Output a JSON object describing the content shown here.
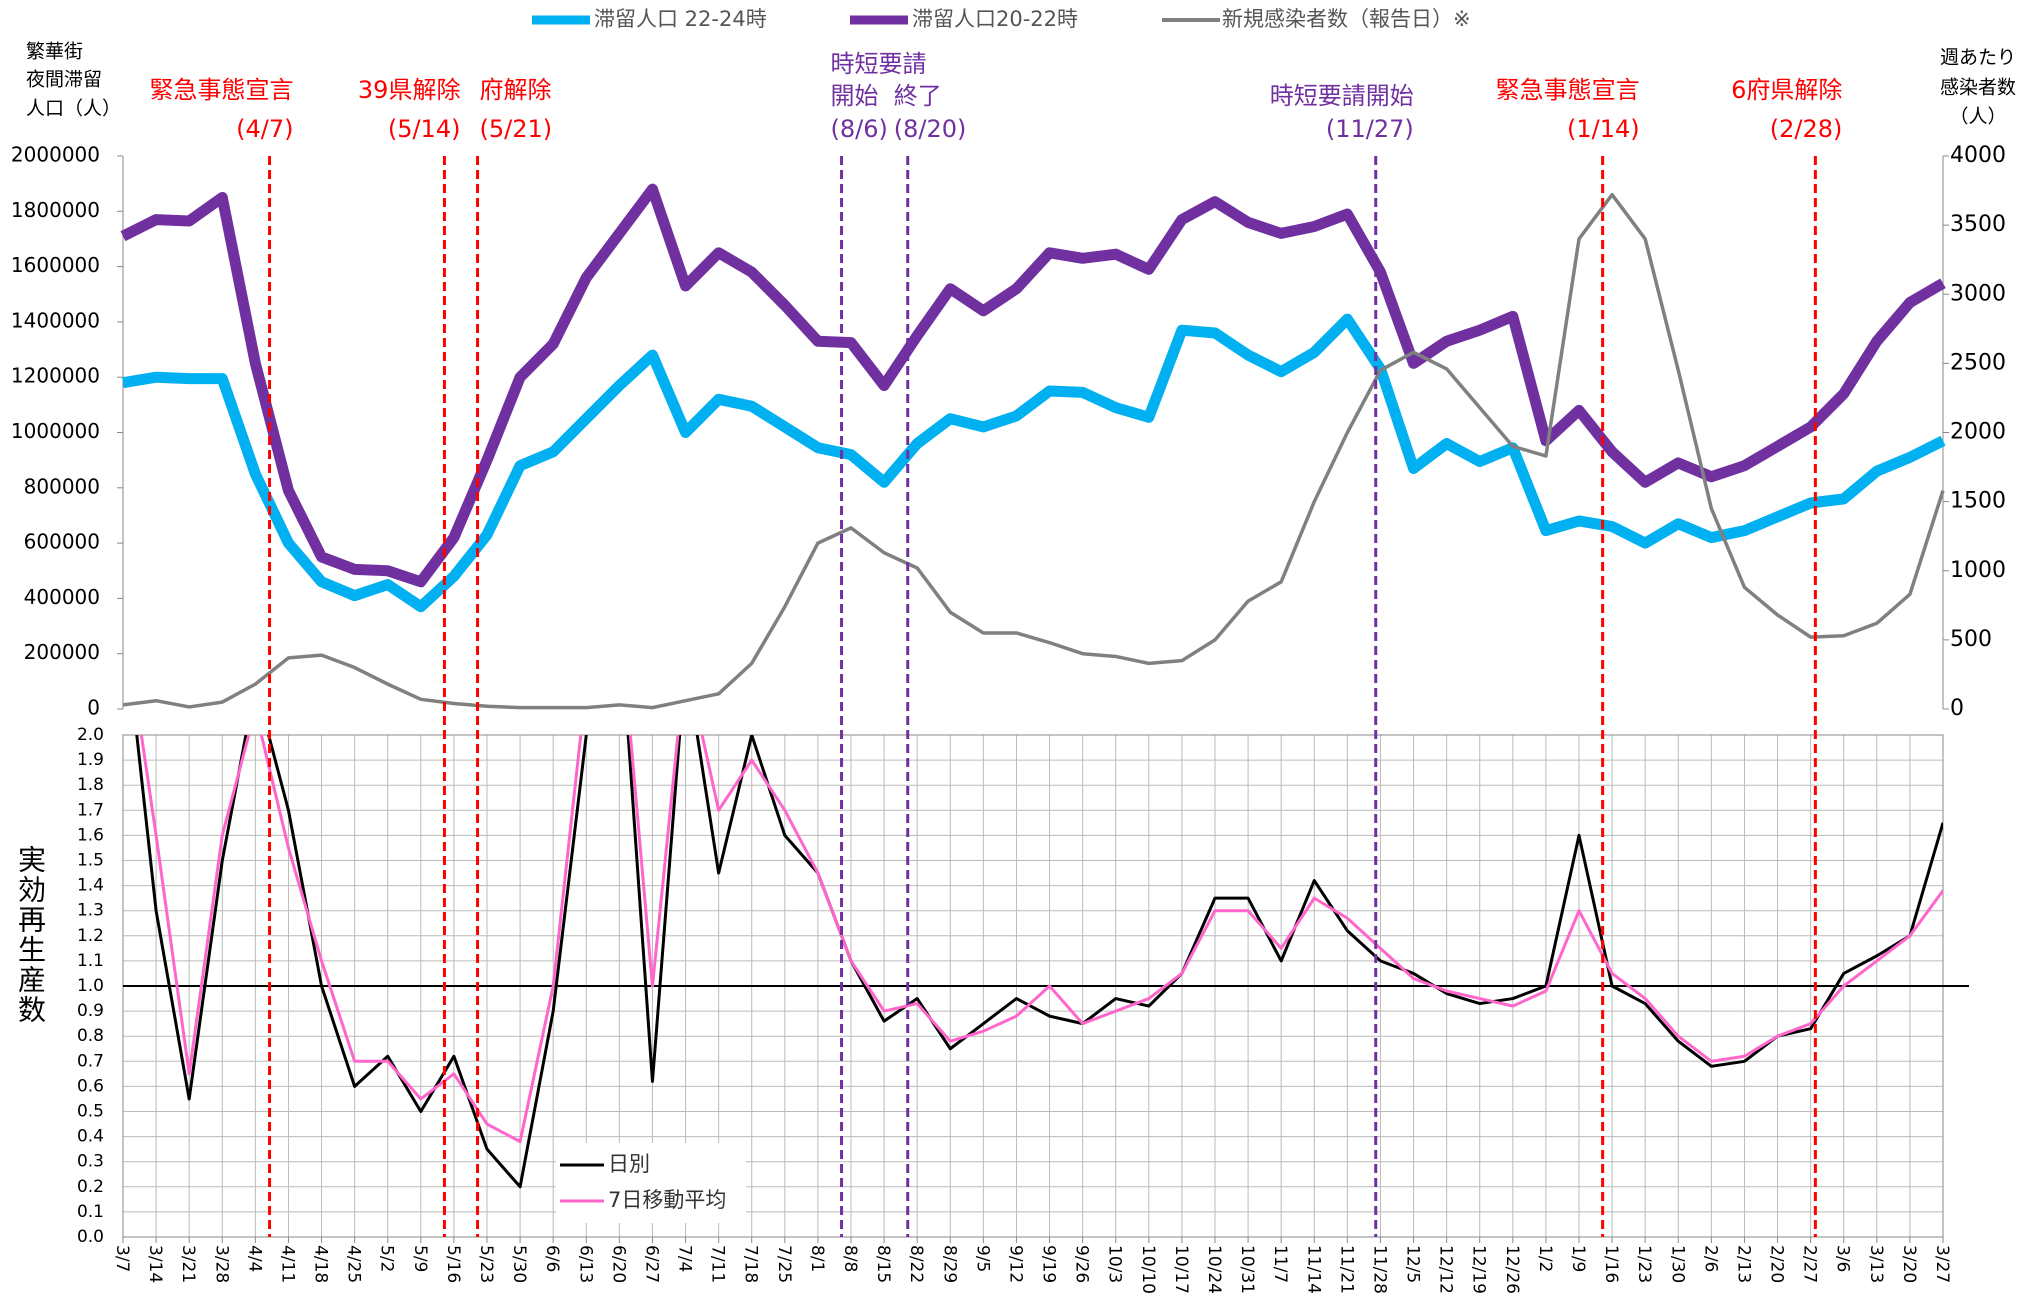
{
  "chart_data": [
    {
      "type": "line",
      "ylabel": [
        "繁華街",
        "夜間滞留",
        "人口（人）"
      ],
      "y2label": [
        "週あたり",
        "感染者数",
        "（人）"
      ],
      "ylim": [
        0,
        2000000
      ],
      "yticks": [
        0,
        200000,
        400000,
        600000,
        800000,
        1000000,
        1200000,
        1400000,
        1600000,
        1800000,
        2000000
      ],
      "y2lim": [
        0,
        4000
      ],
      "y2ticks": [
        0,
        500,
        1000,
        1500,
        2000,
        2500,
        3000,
        3500,
        4000
      ],
      "grid": false,
      "series": [
        {
          "name": "滞留人口 22-24時",
          "color": "#00b0f0",
          "values": [
            1180000,
            1200000,
            1195000,
            1195000,
            850000,
            600000,
            460000,
            410000,
            450000,
            370000,
            480000,
            630000,
            880000,
            930000,
            1050000,
            1170000,
            1280000,
            1000000,
            1120000,
            1095000,
            1020000,
            945000,
            920000,
            820000,
            960000,
            1050000,
            1020000,
            1060000,
            1150000,
            1145000,
            1090000,
            1055000,
            1370000,
            1360000,
            1280000,
            1220000,
            1290000,
            1410000,
            1230000,
            870000,
            960000,
            895000,
            945000,
            645000,
            680000,
            660000,
            600000,
            670000,
            620000,
            645000,
            695000,
            745000,
            760000,
            860000,
            910000,
            970000
          ]
        },
        {
          "name": "滞留人口20-22時",
          "color": "#7030a0",
          "values": [
            1710000,
            1770000,
            1765000,
            1850000,
            1250000,
            790000,
            550000,
            505000,
            500000,
            460000,
            620000,
            900000,
            1200000,
            1320000,
            1560000,
            1720000,
            1880000,
            1530000,
            1650000,
            1580000,
            1460000,
            1330000,
            1325000,
            1170000,
            1350000,
            1520000,
            1440000,
            1520000,
            1650000,
            1630000,
            1645000,
            1590000,
            1770000,
            1835000,
            1760000,
            1720000,
            1745000,
            1790000,
            1580000,
            1250000,
            1330000,
            1370000,
            1420000,
            970000,
            1080000,
            930000,
            820000,
            890000,
            840000,
            880000,
            950000,
            1020000,
            1140000,
            1330000,
            1470000,
            1540000
          ]
        },
        {
          "name": "新規感染者数（報告日）※",
          "color": "#808080",
          "axis": "y2",
          "values": [
            30,
            60,
            15,
            50,
            180,
            370,
            390,
            300,
            180,
            70,
            40,
            20,
            10,
            10,
            10,
            30,
            10,
            60,
            110,
            330,
            740,
            1200,
            1310,
            1130,
            1020,
            700,
            550,
            550,
            480,
            400,
            380,
            330,
            350,
            500,
            780,
            920,
            1500,
            2000,
            2450,
            2580,
            2460,
            2180,
            1900,
            1830,
            3400,
            3720,
            3400,
            2450,
            1450,
            880,
            680,
            520,
            530,
            620,
            830,
            1580
          ]
        }
      ],
      "annotation_heading": "時短要請",
      "annotations": [
        {
          "text": "緊急事態宣言",
          "date": "(4/7)",
          "color": "#ff0000"
        },
        {
          "text": "39県解除",
          "date": "(5/14)",
          "color": "#ff0000"
        },
        {
          "text": "府解除",
          "date": "(5/21)",
          "color": "#ff0000"
        },
        {
          "text": "開始",
          "date": "(8/6)",
          "color": "#7030a0"
        },
        {
          "text": "終了",
          "date": "(8/20)",
          "color": "#7030a0"
        },
        {
          "text": "時短要請開始",
          "date": "(11/27)",
          "color": "#7030a0"
        },
        {
          "text": "緊急事態宣言",
          "date": "(1/14)",
          "color": "#ff0000"
        },
        {
          "text": "6府県解除",
          "date": "(2/28)",
          "color": "#ff0000"
        }
      ]
    },
    {
      "type": "line",
      "ylabel": "実効再生産数",
      "categories": [
        "3/7",
        "3/14",
        "3/21",
        "3/28",
        "4/4",
        "4/11",
        "4/18",
        "4/25",
        "5/2",
        "5/9",
        "5/16",
        "5/23",
        "5/30",
        "6/6",
        "6/13",
        "6/20",
        "6/27",
        "7/4",
        "7/11",
        "7/18",
        "7/25",
        "8/1",
        "8/8",
        "8/15",
        "8/22",
        "8/29",
        "9/5",
        "9/12",
        "9/19",
        "9/26",
        "10/3",
        "10/10",
        "10/17",
        "10/24",
        "10/31",
        "11/7",
        "11/14",
        "11/21",
        "11/28",
        "12/5",
        "12/12",
        "12/19",
        "12/26",
        "1/2",
        "1/9",
        "1/16",
        "1/23",
        "1/30",
        "2/6",
        "2/13",
        "2/20",
        "2/27",
        "3/6",
        "3/13",
        "3/20",
        "3/27"
      ],
      "ylim": [
        0,
        2
      ],
      "yticks": [
        {
          "value": 0,
          "label": "0.0"
        },
        0.1,
        0.2,
        0.3,
        0.4,
        0.5,
        0.6,
        0.7,
        0.8,
        0.9,
        {
          "value": 1,
          "label": "1.0"
        },
        1.1,
        1.2,
        1.3,
        1.4,
        1.5,
        1.6,
        1.7,
        1.8,
        1.9,
        {
          "value": 2,
          "label": "2.0"
        }
      ],
      "grid": true,
      "refline": 1,
      "series": [
        {
          "name": "日別",
          "color": "#000000",
          "values": [
            2.5,
            1.3,
            0.55,
            1.5,
            2.2,
            1.7,
            1.0,
            0.6,
            0.72,
            0.5,
            0.72,
            0.35,
            0.2,
            0.9,
            2.0,
            2.5,
            0.62,
            2.3,
            1.45,
            2.0,
            1.6,
            1.45,
            1.1,
            0.86,
            0.95,
            0.75,
            0.85,
            0.95,
            0.88,
            0.85,
            0.95,
            0.92,
            1.05,
            1.35,
            1.35,
            1.1,
            1.42,
            1.22,
            1.1,
            1.05,
            0.97,
            0.93,
            0.95,
            1.0,
            1.6,
            1.0,
            0.93,
            0.78,
            0.68,
            0.7,
            0.8,
            0.83,
            1.05,
            1.12,
            1.2,
            1.65
          ]
        },
        {
          "name": "7日移動平均",
          "color": "#ff66cc",
          "values": [
            2.5,
            1.6,
            0.65,
            1.6,
            2.1,
            1.55,
            1.1,
            0.7,
            0.7,
            0.55,
            0.65,
            0.45,
            0.38,
            1.0,
            2.2,
            2.5,
            1.0,
            2.3,
            1.7,
            1.9,
            1.7,
            1.45,
            1.1,
            0.9,
            0.93,
            0.78,
            0.82,
            0.88,
            1.0,
            0.85,
            0.9,
            0.95,
            1.05,
            1.3,
            1.3,
            1.15,
            1.35,
            1.27,
            1.15,
            1.03,
            0.98,
            0.95,
            0.92,
            0.98,
            1.3,
            1.05,
            0.95,
            0.8,
            0.7,
            0.72,
            0.8,
            0.85,
            1.0,
            1.1,
            1.2,
            1.38
          ]
        }
      ]
    }
  ]
}
